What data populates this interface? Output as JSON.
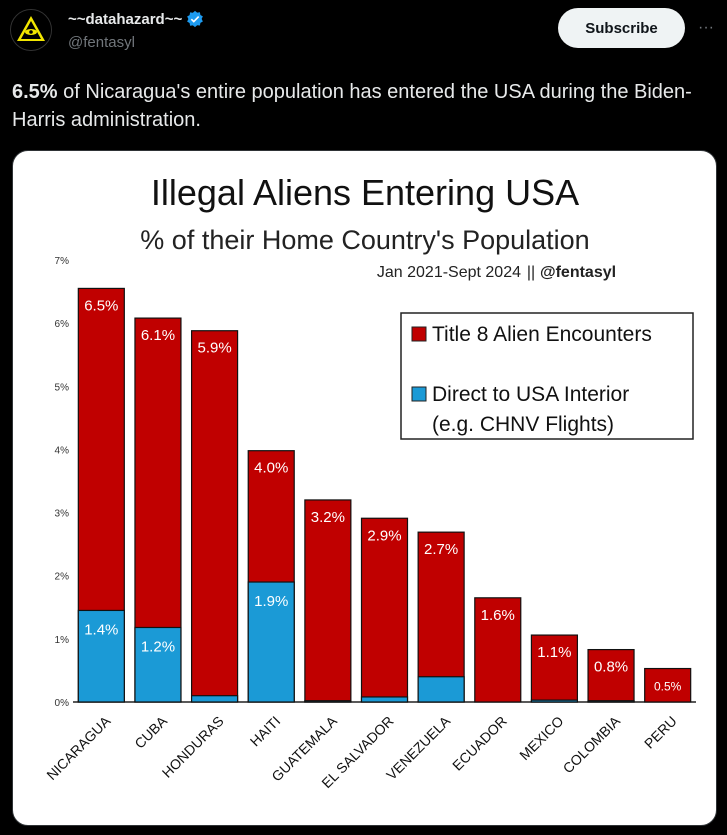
{
  "author": {
    "name": "~~datahazard~~",
    "handle": "@fentasyl",
    "verified_icon": "verified-badge-icon",
    "avatar_icon": "eye-triangle-logo-icon"
  },
  "actions": {
    "subscribe_label": "Subscribe",
    "more_icon": "more-dots-icon",
    "more_label": "···"
  },
  "tweet": {
    "text_bold": "6.5%",
    "text_rest": " of Nicaragua's entire population has entered the USA during the Biden-Harris administration."
  },
  "chart_data": {
    "type": "bar",
    "stacked": true,
    "title": "Illegal Aliens Entering USA",
    "subtitle": "% of their Home Country's Population",
    "note": "Jan 2021-Sept 2024",
    "note_handle": "@fentasyl",
    "categories": [
      "NICARAGUA",
      "CUBA",
      "HONDURAS",
      "HAITI",
      "GUATEMALA",
      "EL SALVADOR",
      "VENEZUELA",
      "ECUADOR",
      "MEXICO",
      "COLOMBIA",
      "PERU"
    ],
    "totals": [
      6.55,
      6.08,
      5.88,
      3.98,
      3.2,
      2.91,
      2.69,
      1.65,
      1.06,
      0.83,
      0.53
    ],
    "total_labels": [
      "6.5%",
      "6.1%",
      "5.9%",
      "4.0%",
      "3.2%",
      "2.9%",
      "2.7%",
      "1.6%",
      "1.1%",
      "0.8%",
      "0.5%"
    ],
    "series": [
      {
        "name": "Direct to USA Interior (e.g. CHNV Flights)",
        "color": "#1b9ad6",
        "values": [
          1.45,
          1.18,
          0.1,
          1.9,
          0.02,
          0.08,
          0.4,
          0.0,
          0.03,
          0.02,
          0.0
        ],
        "labels": [
          "1.4%",
          "1.2%",
          "",
          "1.9%",
          "",
          "",
          "",
          "",
          "",
          "",
          ""
        ]
      },
      {
        "name": "Title 8 Alien Encounters",
        "color": "#c00000",
        "values": [
          5.1,
          4.9,
          5.78,
          2.08,
          3.18,
          2.83,
          2.29,
          1.65,
          1.03,
          0.81,
          0.53
        ]
      }
    ],
    "legend": [
      {
        "label": "Title 8 Alien Encounters",
        "color": "#c00000"
      },
      {
        "label": "Direct to USA Interior",
        "label2": "(e.g. CHNV Flights)",
        "color": "#1b9ad6"
      }
    ],
    "legend_position": "top-right",
    "ylim": [
      0,
      7
    ],
    "yticks": [
      "0%",
      "1%",
      "2%",
      "3%",
      "4%",
      "5%",
      "6%",
      "7%"
    ],
    "grid": false
  }
}
